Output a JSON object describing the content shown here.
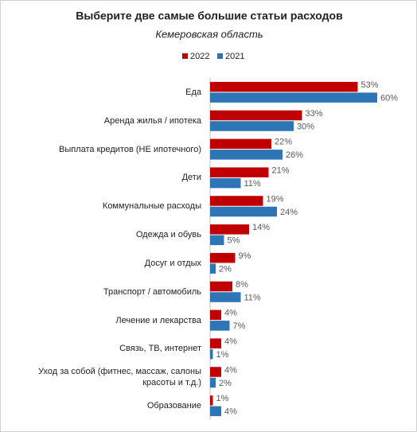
{
  "chart_data": {
    "type": "bar",
    "orientation": "horizontal",
    "title": "Выберите две самые большие статьи расходов",
    "subtitle": "Кемеровская область",
    "categories": [
      "Еда",
      "Аренда жилья / ипотека",
      "Выплата кредитов (НЕ ипотечного)",
      "Дети",
      "Коммунальные расходы",
      "Одежда и обувь",
      "Досуг и отдых",
      "Транспорт / автомобиль",
      "Лечение и лекарства",
      "Связь, ТВ, интернет",
      "Уход за собой (фитнес, массаж, салоны красоты и т.д.)",
      "Образование"
    ],
    "series": [
      {
        "name": "2022",
        "color": "#c00000",
        "values": [
          53,
          33,
          22,
          21,
          19,
          14,
          9,
          8,
          4,
          4,
          4,
          1
        ],
        "value_labels": [
          "53%",
          "33%",
          "22%",
          "21%",
          "19%",
          "14%",
          "9%",
          "8%",
          "4%",
          "4%",
          "4%",
          "1%"
        ]
      },
      {
        "name": "2021",
        "color": "#2e75b6",
        "values": [
          60,
          30,
          26,
          11,
          24,
          5,
          2,
          11,
          7,
          1,
          2,
          4
        ],
        "value_labels": [
          "60%",
          "30%",
          "26%",
          "11%",
          "24%",
          "5%",
          "2%",
          "11%",
          "7%",
          "1%",
          "2%",
          "4%"
        ]
      }
    ],
    "legend": "top"
  }
}
